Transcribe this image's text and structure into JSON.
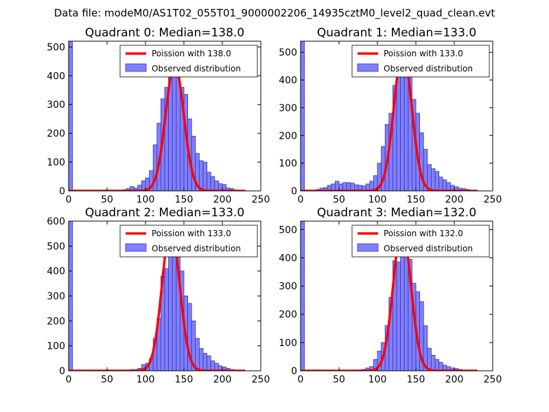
{
  "figure_title": "Data file: modeM0/AS1T02_055T01_9000002206_14935cztM0_level2_quad_clean.evt",
  "colors": {
    "bar_fill": "#8080ff",
    "bar_edge": "#3333aa",
    "line": "#ff0000",
    "frame": "#000000"
  },
  "chart_data": [
    {
      "type": "bar",
      "title": "Quadrant 0: Median=138.0",
      "xlim": [
        0,
        250
      ],
      "ylim": [
        0,
        520
      ],
      "xticks": [
        0,
        50,
        100,
        150,
        200,
        250
      ],
      "yticks": [
        0,
        100,
        200,
        300,
        400,
        500
      ],
      "xlabel": "",
      "ylabel": "",
      "bin_width": 5,
      "bins": [
        [
          0,
          520
        ],
        [
          60,
          2
        ],
        [
          65,
          2
        ],
        [
          70,
          4
        ],
        [
          75,
          8
        ],
        [
          80,
          15
        ],
        [
          85,
          10
        ],
        [
          90,
          20
        ],
        [
          95,
          35
        ],
        [
          100,
          45
        ],
        [
          105,
          70
        ],
        [
          110,
          160
        ],
        [
          115,
          235
        ],
        [
          120,
          320
        ],
        [
          125,
          360
        ],
        [
          130,
          415
        ],
        [
          135,
          430
        ],
        [
          140,
          400
        ],
        [
          145,
          360
        ],
        [
          150,
          335
        ],
        [
          155,
          250
        ],
        [
          160,
          190
        ],
        [
          165,
          130
        ],
        [
          170,
          105
        ],
        [
          175,
          100
        ],
        [
          180,
          65
        ],
        [
          185,
          50
        ],
        [
          190,
          35
        ],
        [
          195,
          25
        ],
        [
          200,
          22
        ],
        [
          205,
          10
        ],
        [
          210,
          8
        ],
        [
          215,
          3
        ]
      ],
      "legend": [
        "Poission with 138.0",
        "Observed distribution"
      ],
      "legend_loc": "upper right",
      "poisson": {
        "mu": 138.0,
        "peak": 440
      }
    },
    {
      "type": "bar",
      "title": "Quadrant 1: Median=133.0",
      "xlim": [
        0,
        250
      ],
      "ylim": [
        0,
        540
      ],
      "xticks": [
        0,
        50,
        100,
        150,
        200,
        250
      ],
      "yticks": [
        0,
        100,
        200,
        300,
        400,
        500
      ],
      "xlabel": "",
      "ylabel": "",
      "bin_width": 5,
      "bins": [
        [
          0,
          540
        ],
        [
          20,
          5
        ],
        [
          25,
          10
        ],
        [
          30,
          12
        ],
        [
          35,
          20
        ],
        [
          40,
          25
        ],
        [
          45,
          35
        ],
        [
          50,
          25
        ],
        [
          55,
          30
        ],
        [
          60,
          30
        ],
        [
          65,
          28
        ],
        [
          70,
          22
        ],
        [
          75,
          20
        ],
        [
          80,
          18
        ],
        [
          85,
          25
        ],
        [
          90,
          35
        ],
        [
          95,
          55
        ],
        [
          100,
          100
        ],
        [
          105,
          160
        ],
        [
          110,
          240
        ],
        [
          115,
          280
        ],
        [
          120,
          380
        ],
        [
          125,
          490
        ],
        [
          130,
          510
        ],
        [
          135,
          505
        ],
        [
          140,
          440
        ],
        [
          145,
          330
        ],
        [
          150,
          280
        ],
        [
          155,
          210
        ],
        [
          160,
          150
        ],
        [
          165,
          95
        ],
        [
          170,
          80
        ],
        [
          175,
          70
        ],
        [
          180,
          50
        ],
        [
          185,
          40
        ],
        [
          190,
          30
        ],
        [
          195,
          20
        ],
        [
          200,
          15
        ],
        [
          205,
          10
        ],
        [
          210,
          8
        ],
        [
          215,
          5
        ]
      ],
      "legend": [
        "Poission with 133.0",
        "Observed distribution"
      ],
      "legend_loc": "upper right",
      "poisson": {
        "mu": 133.0,
        "peak": 505
      }
    },
    {
      "type": "bar",
      "title": "Quadrant 2: Median=133.0",
      "xlim": [
        0,
        250
      ],
      "ylim": [
        0,
        600
      ],
      "xticks": [
        0,
        50,
        100,
        150,
        200,
        250
      ],
      "yticks": [
        0,
        100,
        200,
        300,
        400,
        500,
        600
      ],
      "xlabel": "",
      "ylabel": "",
      "bin_width": 5,
      "bins": [
        [
          0,
          600
        ],
        [
          75,
          3
        ],
        [
          80,
          5
        ],
        [
          85,
          5
        ],
        [
          90,
          10
        ],
        [
          95,
          25
        ],
        [
          100,
          30
        ],
        [
          105,
          50
        ],
        [
          110,
          130
        ],
        [
          115,
          210
        ],
        [
          120,
          380
        ],
        [
          125,
          410
        ],
        [
          130,
          575
        ],
        [
          135,
          570
        ],
        [
          140,
          520
        ],
        [
          145,
          400
        ],
        [
          150,
          300
        ],
        [
          155,
          270
        ],
        [
          160,
          200
        ],
        [
          165,
          130
        ],
        [
          170,
          90
        ],
        [
          175,
          70
        ],
        [
          180,
          60
        ],
        [
          185,
          40
        ],
        [
          190,
          30
        ],
        [
          195,
          20
        ],
        [
          200,
          15
        ],
        [
          205,
          10
        ],
        [
          210,
          5
        ],
        [
          215,
          3
        ]
      ],
      "legend": [
        "Poission with 133.0",
        "Observed distribution"
      ],
      "legend_loc": "upper right",
      "poisson": {
        "mu": 133.0,
        "peak": 570
      }
    },
    {
      "type": "bar",
      "title": "Quadrant 3: Median=132.0",
      "xlim": [
        0,
        250
      ],
      "ylim": [
        0,
        530
      ],
      "xticks": [
        0,
        50,
        100,
        150,
        200,
        250
      ],
      "yticks": [
        0,
        100,
        200,
        300,
        400,
        500
      ],
      "xlabel": "",
      "ylabel": "",
      "bin_width": 5,
      "bins": [
        [
          0,
          530
        ],
        [
          75,
          3
        ],
        [
          80,
          5
        ],
        [
          85,
          10
        ],
        [
          90,
          15
        ],
        [
          95,
          40
        ],
        [
          100,
          70
        ],
        [
          105,
          100
        ],
        [
          110,
          160
        ],
        [
          115,
          260
        ],
        [
          120,
          390
        ],
        [
          125,
          385
        ],
        [
          130,
          430
        ],
        [
          135,
          480
        ],
        [
          140,
          395
        ],
        [
          145,
          310
        ],
        [
          150,
          280
        ],
        [
          155,
          245
        ],
        [
          160,
          160
        ],
        [
          165,
          80
        ],
        [
          170,
          55
        ],
        [
          175,
          40
        ],
        [
          180,
          30
        ],
        [
          185,
          20
        ],
        [
          190,
          15
        ],
        [
          195,
          10
        ],
        [
          200,
          8
        ],
        [
          205,
          5
        ],
        [
          210,
          3
        ]
      ],
      "legend": [
        "Poission with 132.0",
        "Observed distribution"
      ],
      "legend_loc": "upper right",
      "poisson": {
        "mu": 132.0,
        "peak": 505
      }
    }
  ]
}
